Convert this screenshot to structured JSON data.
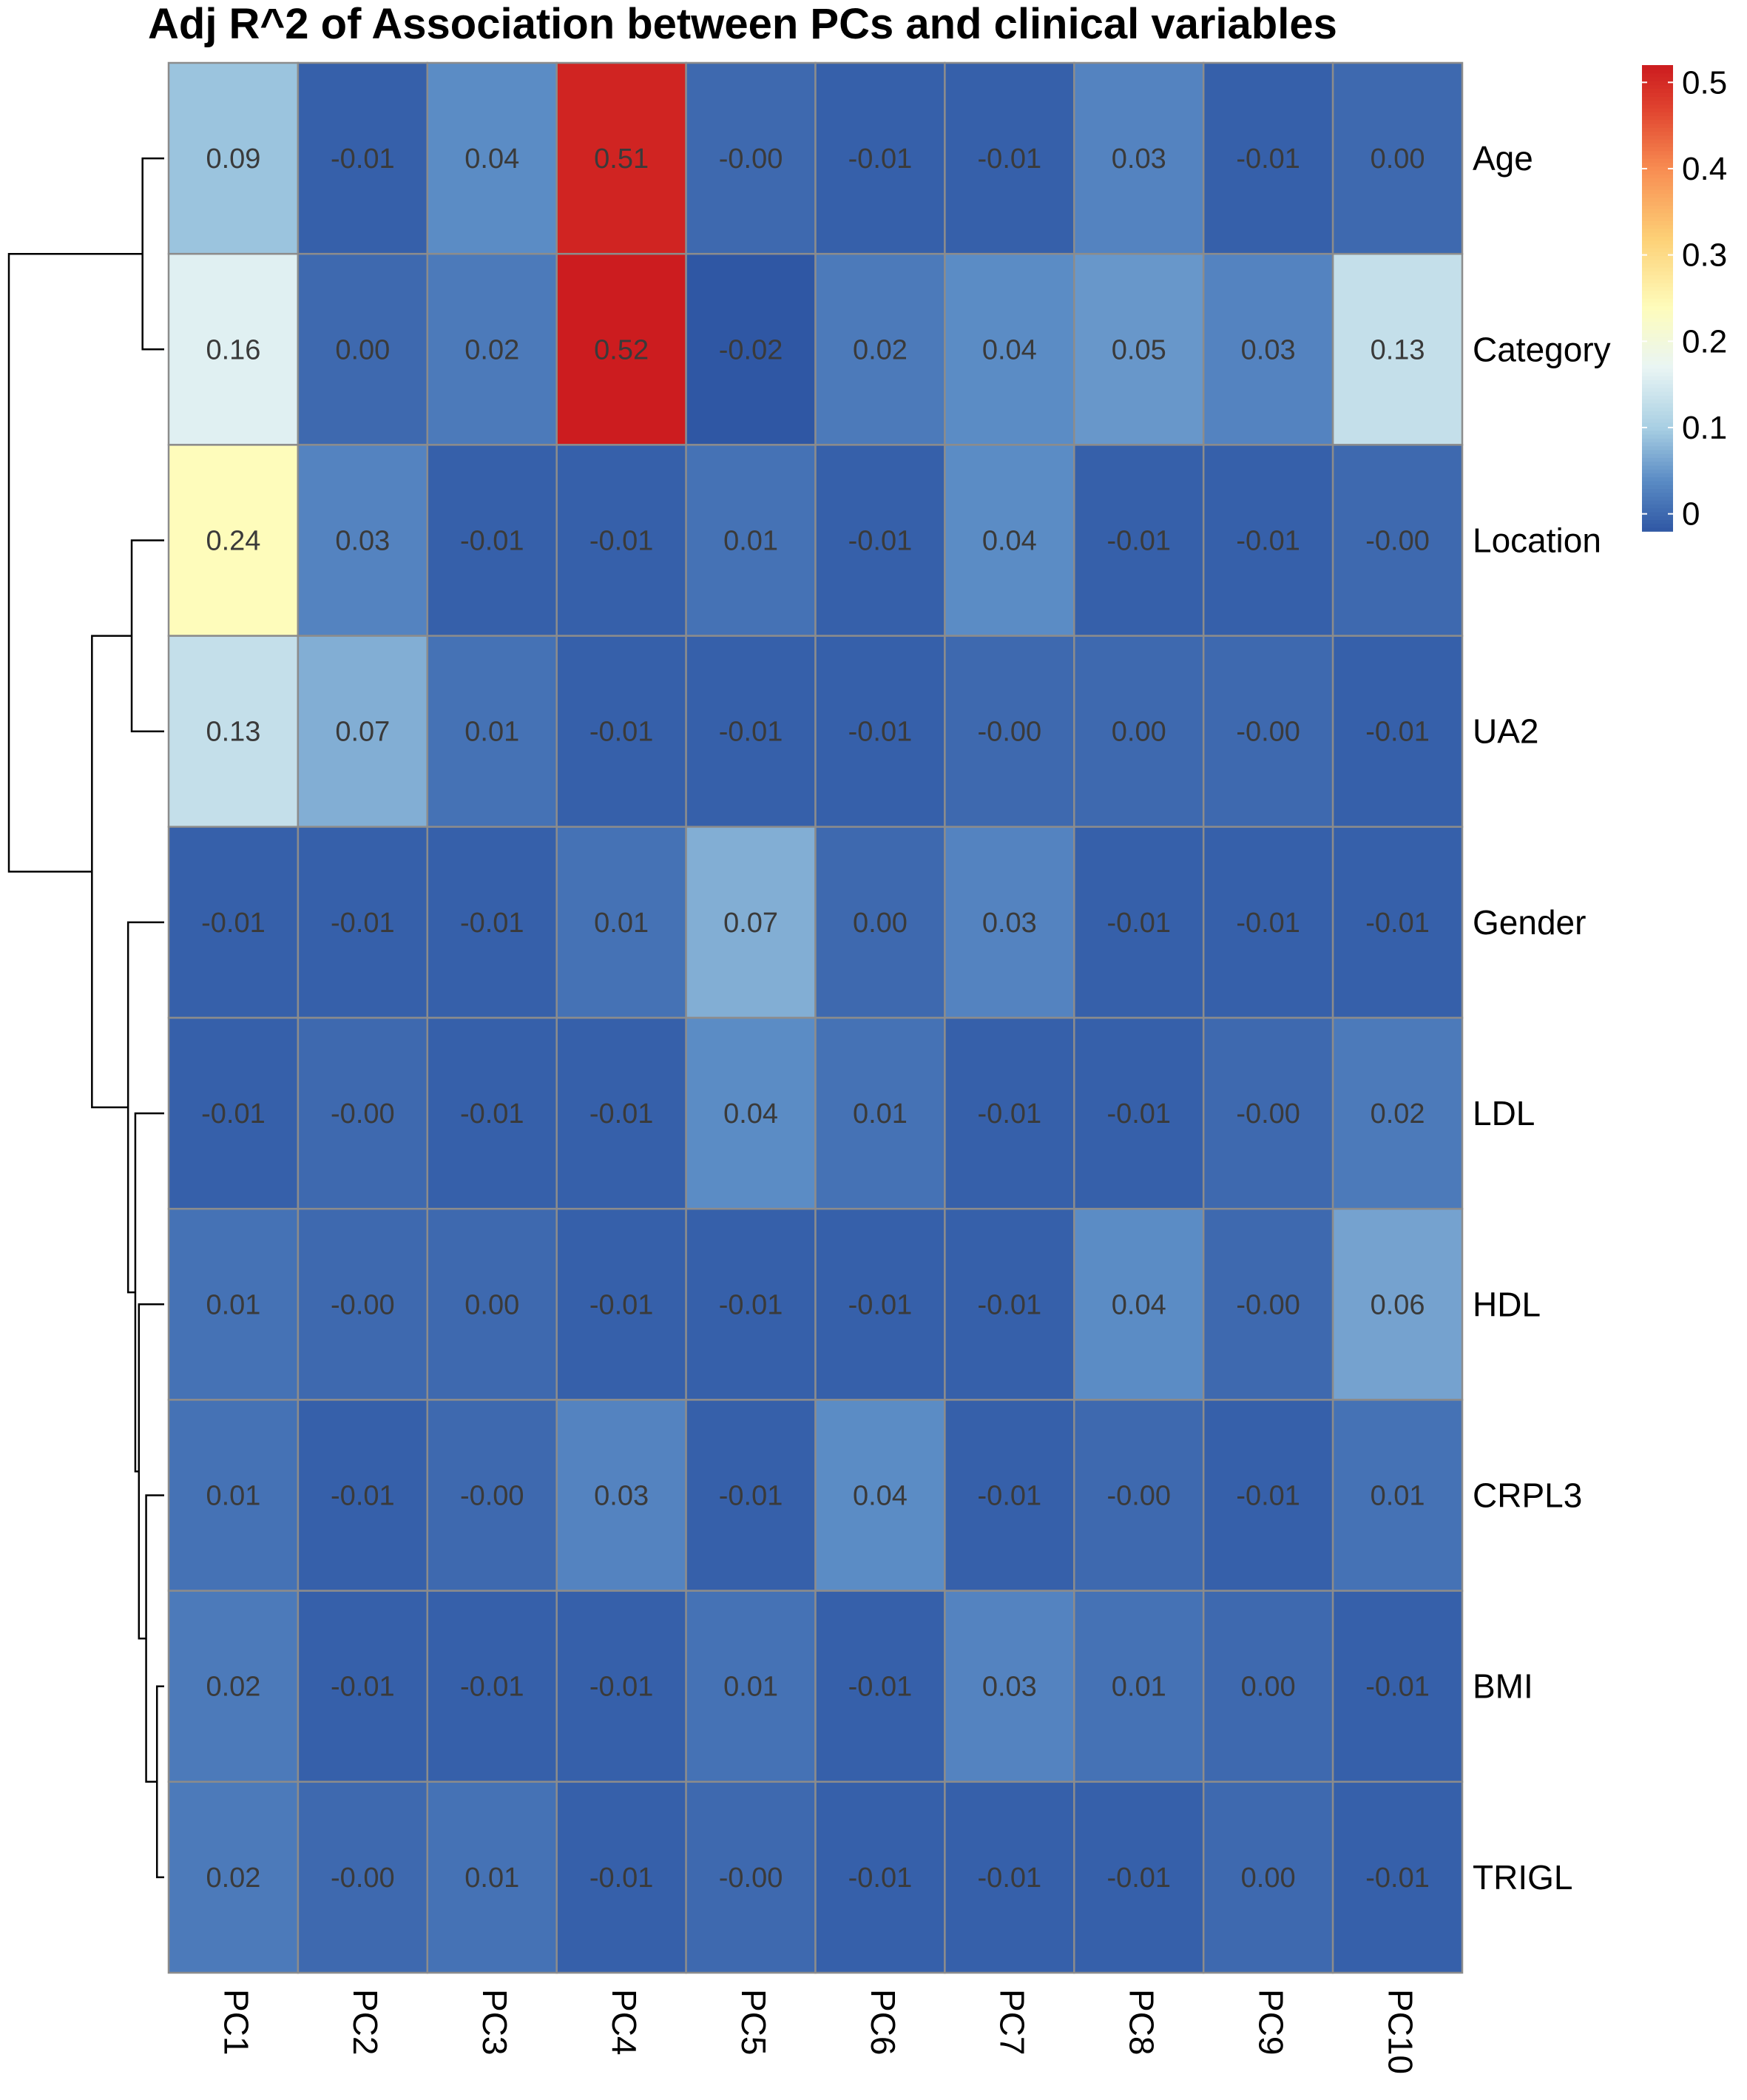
{
  "chart_data": {
    "type": "heatmap",
    "title": "Adj R^2 of Association between PCs and clinical variables",
    "columns": [
      "PC1",
      "PC2",
      "PC3",
      "PC4",
      "PC5",
      "PC6",
      "PC7",
      "PC8",
      "PC9",
      "PC10"
    ],
    "rows": [
      "Age",
      "Category",
      "Location",
      "UA2",
      "Gender",
      "LDL",
      "HDL",
      "CRPL3",
      "BMI",
      "TRIGL"
    ],
    "values": [
      [
        0.09,
        -0.01,
        0.04,
        0.51,
        -0.0,
        -0.01,
        -0.01,
        0.03,
        -0.01,
        0.0
      ],
      [
        0.16,
        0.0,
        0.02,
        0.52,
        -0.02,
        0.02,
        0.04,
        0.05,
        0.03,
        0.13
      ],
      [
        0.24,
        0.03,
        -0.01,
        -0.01,
        0.01,
        -0.01,
        0.04,
        -0.01,
        -0.01,
        -0.0
      ],
      [
        0.13,
        0.07,
        0.01,
        -0.01,
        -0.01,
        -0.01,
        -0.0,
        0.0,
        -0.0,
        -0.01
      ],
      [
        -0.01,
        -0.01,
        -0.01,
        0.01,
        0.07,
        0.0,
        0.03,
        -0.01,
        -0.01,
        -0.01
      ],
      [
        -0.01,
        -0.0,
        -0.01,
        -0.01,
        0.04,
        0.01,
        -0.01,
        -0.01,
        -0.0,
        0.02
      ],
      [
        0.01,
        -0.0,
        0.0,
        -0.01,
        -0.01,
        -0.01,
        -0.01,
        0.04,
        -0.0,
        0.06
      ],
      [
        0.01,
        -0.01,
        -0.0,
        0.03,
        -0.01,
        0.04,
        -0.01,
        -0.0,
        -0.01,
        0.01
      ],
      [
        0.02,
        -0.01,
        -0.01,
        -0.01,
        0.01,
        -0.01,
        0.03,
        0.01,
        0.0,
        -0.01
      ],
      [
        0.02,
        -0.0,
        0.01,
        -0.01,
        -0.0,
        -0.01,
        -0.01,
        -0.01,
        0.0,
        -0.01
      ]
    ],
    "cell_labels": [
      [
        "0.09",
        "-0.01",
        "0.04",
        "0.51",
        "-0.00",
        "-0.01",
        "-0.01",
        "0.03",
        "-0.01",
        "0.00"
      ],
      [
        "0.16",
        "0.00",
        "0.02",
        "0.52",
        "-0.02",
        "0.02",
        "0.04",
        "0.05",
        "0.03",
        "0.13"
      ],
      [
        "0.24",
        "0.03",
        "-0.01",
        "-0.01",
        "0.01",
        "-0.01",
        "0.04",
        "-0.01",
        "-0.01",
        "-0.00"
      ],
      [
        "0.13",
        "0.07",
        "0.01",
        "-0.01",
        "-0.01",
        "-0.01",
        "-0.00",
        "0.00",
        "-0.00",
        "-0.01"
      ],
      [
        "-0.01",
        "-0.01",
        "-0.01",
        "0.01",
        "0.07",
        "0.00",
        "0.03",
        "-0.01",
        "-0.01",
        "-0.01"
      ],
      [
        "-0.01",
        "-0.00",
        "-0.01",
        "-0.01",
        "0.04",
        "0.01",
        "-0.01",
        "-0.01",
        "-0.00",
        "0.02"
      ],
      [
        "0.01",
        "-0.00",
        "0.00",
        "-0.01",
        "-0.01",
        "-0.01",
        "-0.01",
        "0.04",
        "-0.00",
        "0.06"
      ],
      [
        "0.01",
        "-0.01",
        "-0.00",
        "0.03",
        "-0.01",
        "0.04",
        "-0.01",
        "-0.00",
        "-0.01",
        "0.01"
      ],
      [
        "0.02",
        "-0.01",
        "-0.01",
        "-0.01",
        "0.01",
        "-0.01",
        "0.03",
        "0.01",
        "0.00",
        "-0.01"
      ],
      [
        "0.02",
        "-0.00",
        "0.01",
        "-0.01",
        "-0.00",
        "-0.01",
        "-0.01",
        "-0.01",
        "0.00",
        "-0.01"
      ]
    ],
    "color_scale": {
      "min": -0.02,
      "max": 0.52,
      "stops": [
        {
          "value": -0.02,
          "color": "#2f57a4"
        },
        {
          "value": 0.04,
          "color": "#5b8cc5"
        },
        {
          "value": 0.1,
          "color": "#a8cfe3"
        },
        {
          "value": 0.17,
          "color": "#e9f5f4"
        },
        {
          "value": 0.24,
          "color": "#fefcbb"
        },
        {
          "value": 0.32,
          "color": "#fdd076"
        },
        {
          "value": 0.4,
          "color": "#f88d52"
        },
        {
          "value": 0.47,
          "color": "#e0432f"
        },
        {
          "value": 0.52,
          "color": "#cc1c1f"
        }
      ],
      "legend_ticks": [
        "0",
        "0.1",
        "0.2",
        "0.3",
        "0.4",
        "0.5"
      ],
      "legend_tick_values": [
        0,
        0.1,
        0.2,
        0.3,
        0.4,
        0.5
      ]
    },
    "row_dendrogram": {
      "merges": [
        {
          "left": "Age",
          "right": "Category",
          "height": 0.06
        },
        {
          "left": "Location",
          "right": "UA2",
          "height": 0.09
        },
        {
          "left": "BMI",
          "right": "TRIGL",
          "height": 0.02
        },
        {
          "left": "CRPL3",
          "right": "BMI+TRIGL",
          "height": 0.05
        },
        {
          "left": "HDL",
          "right": "CRPL3+BMI+TRIGL",
          "height": 0.07
        },
        {
          "left": "LDL",
          "right": "HDL+CRPL3+BMI+TRIGL",
          "height": 0.08
        },
        {
          "left": "Gender",
          "right": "LDL+HDL+CRPL3+BMI+TRIGL",
          "height": 0.1
        },
        {
          "left": "Location+UA2",
          "right": "Gender+LDL+HDL+CRPL3+BMI+TRIGL",
          "height": 0.2
        },
        {
          "left": "Age+Category",
          "right": "Location+UA2+Gender+LDL+HDL+CRPL3+BMI+TRIGL",
          "height": 0.43
        }
      ]
    },
    "grid_color": "#8c8c8c",
    "legend_position": "top-right"
  }
}
